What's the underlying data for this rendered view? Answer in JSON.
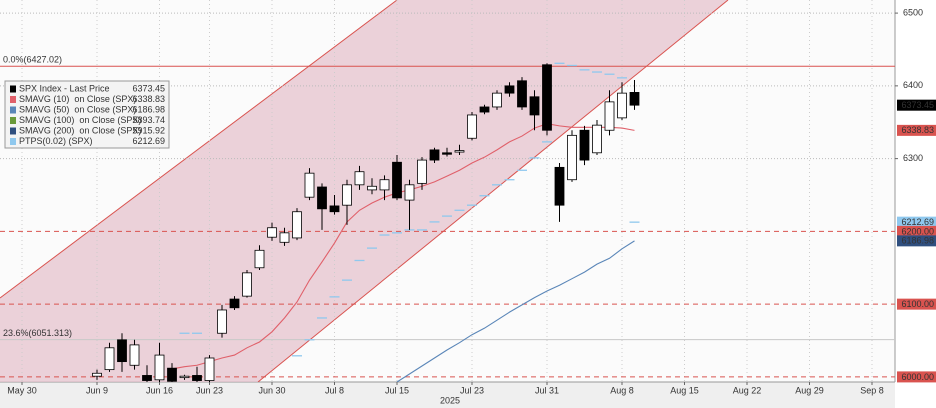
{
  "chart_data": {
    "type": "candlestick",
    "ylim": [
      5993,
      6518
    ],
    "yticks": [
      6300,
      6400,
      6500
    ],
    "grid": true,
    "xlabel": "2025",
    "categories": [
      "May 30",
      null,
      null,
      null,
      null,
      null,
      "Jun 9",
      null,
      null,
      null,
      null,
      "Jun 16",
      null,
      null,
      null,
      "Jun 23",
      null,
      null,
      null,
      null,
      "Jun 30",
      null,
      null,
      null,
      null,
      "Jul 8",
      null,
      null,
      null,
      null,
      "Jul 15",
      null,
      null,
      null,
      null,
      null,
      "Jul 23",
      null,
      null,
      null,
      null,
      null,
      "Jul 31",
      null,
      null,
      null,
      null,
      null,
      "Aug 8",
      null,
      null,
      null,
      null,
      "Aug 15",
      null,
      null,
      null,
      null,
      "Aug 22",
      null,
      null,
      null,
      null,
      "Aug 29",
      null,
      null,
      null,
      null,
      "Sep 8"
    ],
    "candles": {
      "up_color": "#ffffff",
      "down_color": "#000000",
      "edge_color": "#000000",
      "open": [
        null,
        null,
        null,
        null,
        null,
        null,
        6001,
        6010,
        6051,
        6016,
        6002,
        5996,
        6012,
        5999,
        6002,
        5995,
        6060,
        6107,
        6111,
        6150,
        6192,
        6185,
        6191,
        6247,
        6261,
        6235,
        6236,
        6264,
        6257,
        6257,
        6295,
        6243,
        6266,
        6312,
        6308,
        6309,
        6328,
        6371,
        6371,
        6400,
        6407,
        6385,
        6429,
        6288,
        6271,
        6339,
        6308,
        6339,
        6356,
        6391,
        null,
        null,
        null,
        null,
        null,
        null,
        null,
        null,
        null,
        null,
        null,
        null,
        null,
        null,
        null,
        null,
        null,
        null,
        null
      ],
      "high": [
        null,
        null,
        null,
        null,
        null,
        null,
        6010,
        6047,
        6060,
        6051,
        6016,
        6047,
        6019,
        6003,
        6014,
        6030,
        6099,
        6111,
        6147,
        6181,
        6212,
        6205,
        6232,
        6287,
        6266,
        6250,
        6271,
        6290,
        6273,
        6277,
        6305,
        6271,
        6302,
        6315,
        6315,
        6319,
        6364,
        6374,
        6394,
        6405,
        6412,
        6394,
        6431,
        6294,
        6339,
        6345,
        6353,
        6394,
        6405,
        6408,
        null,
        null,
        null,
        null,
        null,
        null,
        null,
        null,
        null,
        null,
        null,
        null,
        null,
        null,
        null,
        null,
        null,
        null,
        null
      ],
      "low": [
        null,
        null,
        null,
        null,
        null,
        null,
        5996,
        6007,
        6007,
        6010,
        5993,
        5993,
        5993,
        5996,
        5993,
        5993,
        6054,
        6092,
        6109,
        6147,
        6187,
        6180,
        6188,
        6243,
        6202,
        6223,
        6209,
        6257,
        6251,
        6243,
        6243,
        6202,
        6257,
        6294,
        6303,
        6305,
        6325,
        6361,
        6367,
        6385,
        6367,
        6339,
        6332,
        6213,
        6268,
        6291,
        6305,
        6332,
        6353,
        6367,
        null,
        null,
        null,
        null,
        null,
        null,
        null,
        null,
        null,
        null,
        null,
        null,
        null,
        null,
        null,
        null,
        null,
        null,
        null
      ],
      "close": [
        null,
        null,
        null,
        null,
        null,
        null,
        6005,
        6040,
        6021,
        6044,
        5995,
        6030,
        5994,
        6001,
        5995,
        6026,
        6092,
        6095,
        6143,
        6174,
        6205,
        6198,
        6227,
        6280,
        6231,
        6227,
        6264,
        6282,
        6262,
        6271,
        6246,
        6264,
        6298,
        6298,
        6306,
        6311,
        6360,
        6364,
        6390,
        6390,
        6371,
        6360,
        6339,
        6236,
        6332,
        6298,
        6346,
        6378,
        6390,
        6373.45,
        null,
        null,
        null,
        null,
        null,
        null,
        null,
        null,
        null,
        null,
        null,
        null,
        null,
        null,
        null,
        null,
        null,
        null,
        null
      ]
    },
    "lines": [
      {
        "color": "#e0606a",
        "style": "line",
        "values": [
          null,
          null,
          null,
          null,
          null,
          null,
          null,
          null,
          null,
          null,
          null,
          null,
          6011,
          6014,
          6016,
          6021,
          6026,
          6030,
          6040,
          6048,
          6062,
          6081,
          6103,
          6133,
          6158,
          6184,
          6213,
          6229,
          6239,
          6247,
          6253,
          6257,
          6262,
          6268,
          6276,
          6284,
          6294,
          6302,
          6312,
          6323,
          6331,
          6342,
          6348,
          6345,
          6343,
          6343,
          6343,
          6343,
          6342,
          6338.83,
          null,
          null,
          null,
          null,
          null,
          null,
          null,
          null,
          null,
          null,
          null,
          null,
          null,
          null,
          null,
          null,
          null,
          null,
          null
        ]
      },
      {
        "color": "#5a86b8",
        "style": "line",
        "values": [
          null,
          null,
          null,
          null,
          null,
          null,
          null,
          null,
          null,
          null,
          null,
          null,
          null,
          null,
          null,
          null,
          null,
          null,
          null,
          null,
          null,
          null,
          null,
          null,
          null,
          null,
          null,
          null,
          null,
          null,
          5993,
          6004,
          6015,
          6026,
          6037,
          6047,
          6058,
          6067,
          6078,
          6089,
          6099,
          6109,
          6118,
          6126,
          6135,
          6144,
          6155,
          6163,
          6176,
          6186.98,
          null,
          null,
          null,
          null,
          null,
          null,
          null,
          null,
          null,
          null,
          null,
          null,
          null,
          null,
          null,
          null,
          null,
          null,
          null
        ]
      },
      {
        "color": "#8fc8ee",
        "style": "dash",
        "values": [
          null,
          null,
          null,
          null,
          null,
          null,
          null,
          null,
          null,
          null,
          null,
          null,
          null,
          6060,
          6060,
          null,
          null,
          null,
          null,
          null,
          null,
          null,
          6029,
          6051,
          6081,
          6110,
          6133,
          6160,
          6177,
          6195,
          6198,
          6202,
          6202,
          6213,
          6221,
          6229,
          6236,
          6249,
          6264,
          6271,
          6284,
          6301,
          6323,
          6431,
          6428,
          6422,
          6419,
          6416,
          6411,
          6212.69,
          null,
          null,
          null,
          null,
          null,
          null,
          null,
          null,
          null,
          null,
          null,
          null,
          null,
          null,
          null,
          null,
          null,
          null,
          null
        ]
      }
    ],
    "legend": [
      {
        "name": "SPX Index - Last Price",
        "color": "#000000",
        "value": 6373.45
      },
      {
        "name": "SMAVG (10)  on Close (SPX)",
        "color": "#e0606a",
        "value": 6338.83
      },
      {
        "name": "SMAVG (50)  on Close (SPX)",
        "color": "#5a86b8",
        "value": 6186.98
      },
      {
        "name": "SMAVG (100)  on Close (SPX)",
        "color": "#6a9a3a",
        "value": 5893.74
      },
      {
        "name": "SMAVG (200)  on Close (SPX)",
        "color": "#2f4f7f",
        "value": 5915.92
      },
      {
        "name": "PTPS(0.02) (SPX)",
        "color": "#8fc8ee",
        "value": 6212.69
      }
    ],
    "hlines": [
      {
        "value": 6427.02,
        "label": "0.0%(6427.02)",
        "color": "#d9534f",
        "dash": false
      },
      {
        "value": 6051.313,
        "label": "23.6%(6051.313)",
        "color": "#c8c8c8",
        "dash": false
      },
      {
        "value": 6200,
        "color": "#d9534f",
        "dash": true
      },
      {
        "value": 6100,
        "color": "#d9534f",
        "dash": true
      },
      {
        "value": 6000,
        "color": "#d9534f",
        "dash": true
      }
    ],
    "markers": [
      {
        "value": 6373.45,
        "color": "#000000",
        "text_color": "#ffffff"
      },
      {
        "value": 6338.83,
        "color": "#d9534f",
        "text_color": "#ffffff"
      },
      {
        "value": 6212.69,
        "color": "#8fc8ee",
        "text_color": "#1a2a3a"
      },
      {
        "value": 6200,
        "label": "6200.00",
        "color": "#d9534f",
        "text_color": "#ffffff"
      },
      {
        "value": 6186.98,
        "color": "#2f4f7f",
        "text_color": "#ffffff"
      },
      {
        "value": 6100,
        "label": "6100.00",
        "color": "#d9534f",
        "text_color": "#ffffff"
      },
      {
        "value": 6000,
        "label": "6000.00",
        "color": "#d9534f",
        "text_color": "#ffffff"
      }
    ]
  }
}
